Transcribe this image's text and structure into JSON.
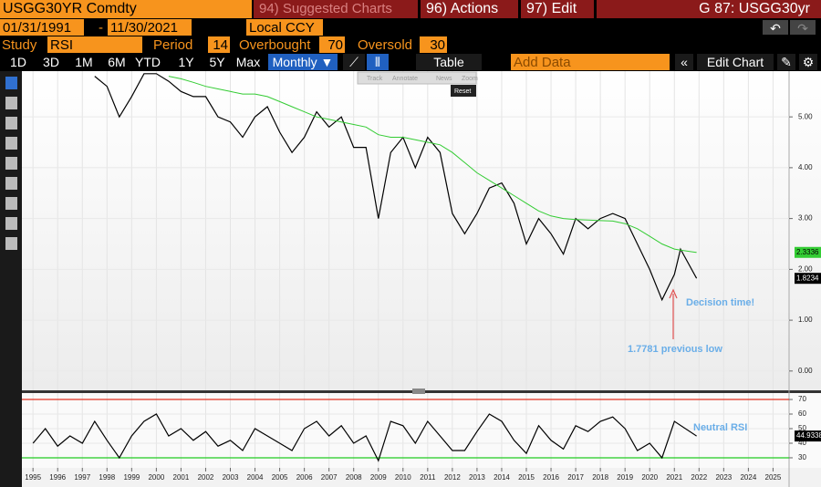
{
  "ui": {
    "ticker": "USGG30YR Comdty",
    "suggested": "94) Suggested Charts",
    "actions": "96) Actions",
    "edit": "97) Edit",
    "security": "G 87: USGG30yr",
    "start_date": "01/31/1991",
    "date_sep": "-",
    "end_date": "11/30/2021",
    "currency": "Local CCY",
    "study_label": "Study",
    "study": "RSI",
    "period_label": "Period",
    "period": 14,
    "overbought_label": "Overbought",
    "overbought": 70,
    "oversold_label": "Oversold",
    "oversold": 30,
    "ranges": [
      "1D",
      "3D",
      "1M",
      "6M",
      "YTD",
      "1Y",
      "5Y",
      "Max"
    ],
    "frequency": "Monthly ▼",
    "table": "Table",
    "add_data": "Add Data",
    "edit_chart": "Edit Chart",
    "tools": [
      "Track",
      "Annotate",
      "News",
      "Zoom"
    ],
    "reset": "Reset"
  },
  "chart_data": [
    {
      "type": "line",
      "x": [
        1997.5,
        1998,
        1998.5,
        1999,
        1999.5,
        2000,
        2000.5,
        2001,
        2001.5,
        2002,
        2002.5,
        2003,
        2003.5,
        2004,
        2004.5,
        2005,
        2005.5,
        2006,
        2006.5,
        2007,
        2007.5,
        2008,
        2008.5,
        2009,
        2009.5,
        2010,
        2010.5,
        2011,
        2011.5,
        2012,
        2012.5,
        2013,
        2013.5,
        2014,
        2014.5,
        2015,
        2015.5,
        2016,
        2016.5,
        2017,
        2017.5,
        2018,
        2018.5,
        2019,
        2019.5,
        2020,
        2020.5,
        2021,
        2021.25,
        2021.9
      ],
      "series": [
        {
          "color": "#000000",
          "values": [
            5.8,
            5.6,
            5.0,
            5.4,
            5.85,
            5.85,
            5.7,
            5.5,
            5.4,
            5.4,
            5.0,
            4.9,
            4.6,
            5.0,
            5.2,
            4.7,
            4.3,
            4.6,
            5.1,
            4.8,
            5.0,
            4.4,
            4.4,
            3.0,
            4.3,
            4.6,
            4.0,
            4.6,
            4.3,
            3.1,
            2.7,
            3.1,
            3.6,
            3.7,
            3.3,
            2.5,
            3.0,
            2.7,
            2.3,
            3.0,
            2.8,
            3.0,
            3.1,
            3.0,
            2.5,
            2.0,
            1.4,
            1.9,
            2.4,
            1.8234
          ]
        },
        {
          "color": "#33cc33",
          "values": [
            null,
            null,
            null,
            null,
            null,
            null,
            5.8,
            5.75,
            5.68,
            5.6,
            5.55,
            5.5,
            5.45,
            5.45,
            5.4,
            5.3,
            5.2,
            5.1,
            5.0,
            4.95,
            4.9,
            4.85,
            4.8,
            4.65,
            4.6,
            4.6,
            4.55,
            4.5,
            4.45,
            4.3,
            4.1,
            3.9,
            3.75,
            3.6,
            3.45,
            3.3,
            3.15,
            3.05,
            3.0,
            2.98,
            2.97,
            2.96,
            2.95,
            2.9,
            2.8,
            2.65,
            2.5,
            2.4,
            2.38,
            2.3336
          ]
        }
      ],
      "xlim": [
        1994.55,
        2025.65
      ],
      "xticks": [
        1995,
        1996,
        1997,
        1998,
        1999,
        2000,
        2001,
        2002,
        2003,
        2004,
        2005,
        2006,
        2007,
        2008,
        2009,
        2010,
        2011,
        2012,
        2013,
        2014,
        2015,
        2016,
        2017,
        2018,
        2019,
        2020,
        2021,
        2022,
        2023,
        2024,
        2025
      ],
      "ylim": [
        -0.38,
        5.9
      ],
      "yticks": [
        {
          "value": 0,
          "label": "0.00"
        },
        {
          "value": 1,
          "label": "1.00"
        },
        {
          "value": 2,
          "label": "2.00"
        },
        {
          "value": 3,
          "label": "3.00"
        },
        {
          "value": 4,
          "label": "4.00"
        },
        {
          "value": 5,
          "label": "5.00"
        }
      ],
      "grid": true,
      "annotations": [
        "Decision time!",
        "1.7781 previous low"
      ]
    },
    {
      "type": "line",
      "x": [
        1995,
        1995.5,
        1996,
        1996.5,
        1997,
        1997.5,
        1998,
        1998.5,
        1999,
        1999.5,
        2000,
        2000.5,
        2001,
        2001.5,
        2002,
        2002.5,
        2003,
        2003.5,
        2004,
        2004.5,
        2005,
        2005.5,
        2006,
        2006.5,
        2007,
        2007.5,
        2008,
        2008.5,
        2009,
        2009.5,
        2010,
        2010.5,
        2011,
        2011.5,
        2012,
        2012.5,
        2013,
        2013.5,
        2014,
        2014.5,
        2015,
        2015.5,
        2016,
        2016.5,
        2017,
        2017.5,
        2018,
        2018.5,
        2019,
        2019.5,
        2020,
        2020.5,
        2021,
        2021.9
      ],
      "series": [
        {
          "color": "#000000",
          "values": [
            40,
            50,
            38,
            45,
            40,
            55,
            42,
            30,
            45,
            55,
            60,
            45,
            50,
            42,
            48,
            38,
            42,
            35,
            50,
            45,
            40,
            35,
            50,
            55,
            45,
            52,
            40,
            45,
            28,
            55,
            52,
            40,
            55,
            45,
            35,
            35,
            48,
            60,
            55,
            42,
            33,
            52,
            42,
            36,
            52,
            48,
            55,
            58,
            50,
            35,
            40,
            30,
            55,
            44.9338
          ]
        }
      ],
      "xlim": [
        1994.55,
        2025.65
      ],
      "xticks": [
        1995,
        1996,
        1997,
        1998,
        1999,
        2000,
        2001,
        2002,
        2003,
        2004,
        2005,
        2006,
        2007,
        2008,
        2009,
        2010,
        2011,
        2012,
        2013,
        2014,
        2015,
        2016,
        2017,
        2018,
        2019,
        2020,
        2021,
        2022,
        2023,
        2024,
        2025
      ],
      "ylim": [
        23.1,
        74.4
      ],
      "yticks": [
        30,
        40,
        50,
        60,
        70
      ],
      "grid": true,
      "hlines": [
        {
          "value": 70,
          "color": "#e03020"
        },
        {
          "value": 30,
          "color": "#22cc22"
        }
      ],
      "annotations": [
        "Neutral RSI"
      ]
    }
  ]
}
